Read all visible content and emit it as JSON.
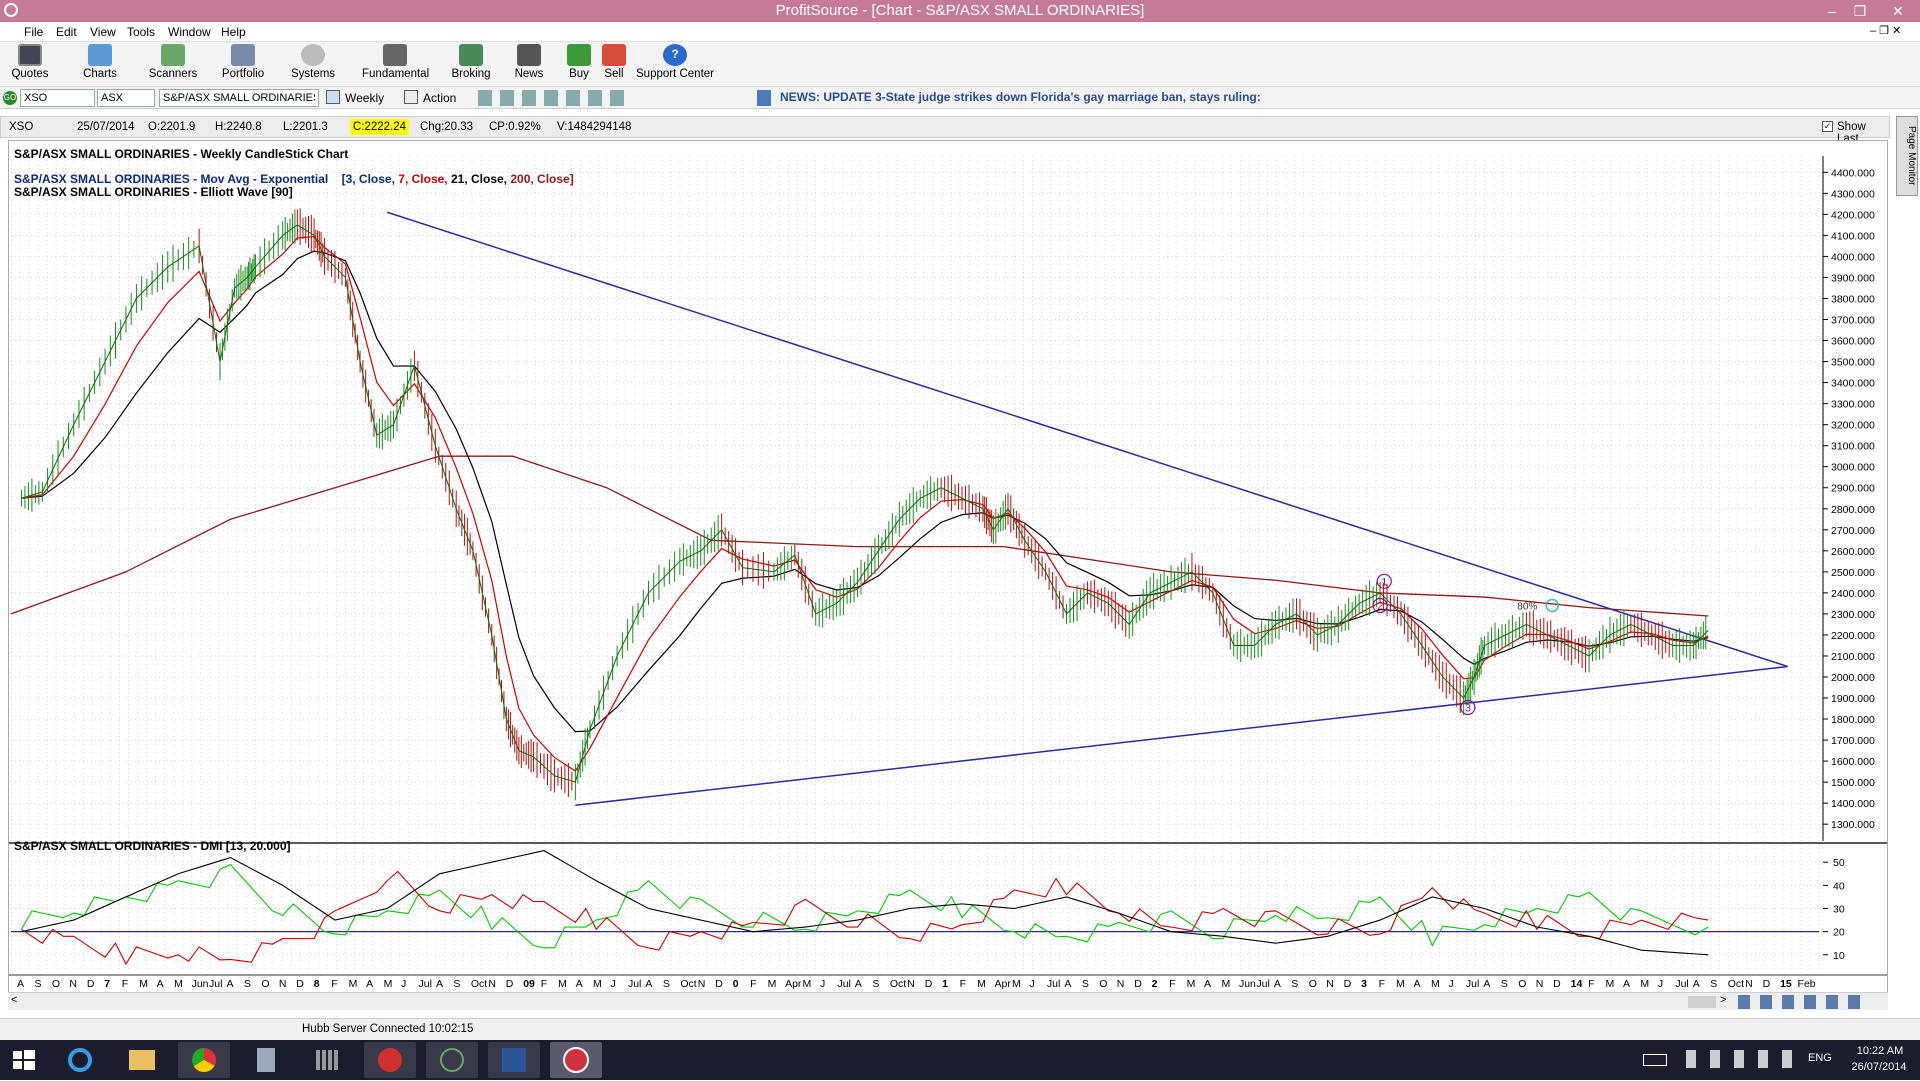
{
  "window": {
    "title": "ProfitSource - [Chart - S&P/ASX SMALL ORDINARIES]"
  },
  "menu": [
    "File",
    "Edit",
    "View",
    "Tools",
    "Window",
    "Help"
  ],
  "toolbar": {
    "buttons": [
      "Quotes",
      "Charts",
      "Scanners",
      "Portfolio",
      "Systems",
      "Fundamental",
      "Broking",
      "News",
      "Buy",
      "Sell",
      "Support Center"
    ]
  },
  "security_bar": {
    "code": "XSO",
    "exchange": "ASX",
    "name": "S&P/ASX SMALL ORDINARIES",
    "period": "Weekly",
    "action": "Action",
    "news": "NEWS: UPDATE 3-State judge strikes down Florida's gay marriage ban, stays ruling:"
  },
  "quote": {
    "code": "XSO",
    "date": "25/07/2014",
    "open": "O:2201.9",
    "high": "H:2240.8",
    "low": "L:2201.3",
    "close": "C:2222.24",
    "change": "Chg:20.33",
    "change_pct": "CP:0.92%",
    "volume": "V:1484294148",
    "show_last": "Show Last"
  },
  "side_tab": "Page Monitor",
  "status": "Hubb Server Connected 10:02:15",
  "clock": {
    "time": "10:22 AM",
    "date": "26/07/2014",
    "lang": "ENG"
  },
  "colors": {
    "title_bar": "#c57a95",
    "close_highlight": "#ffff00",
    "mov_avg_3": "#cc0000",
    "mov_avg_21": "#000000",
    "mov_avg_200": "#8b1a1a",
    "trend_lines": "#2b2b9a",
    "dmi_plus": "#00cc00",
    "dmi_minus": "#cc0000",
    "adx": "#000000",
    "wave_labels": "#7a1a6a"
  },
  "chart_data": [
    {
      "type": "line",
      "title": "S&P/ASX SMALL ORDINARIES - Weekly CandleStick Chart",
      "legend_name": "S&P/ASX SMALL ORDINARIES - Mov Avg - Exponential",
      "legend_params": [
        "[3, Close, ",
        "7, Close, ",
        "21, Close, ",
        "200, Close]"
      ],
      "legend2": "S&P/ASX SMALL ORDINARIES - Elliott Wave [90]",
      "y_ticks": [
        "4400.000",
        "4300.000",
        "4200.000",
        "4100.000",
        "4000.000",
        "3900.000",
        "3800.000",
        "3700.000",
        "3600.000",
        "3500.000",
        "3400.000",
        "3300.000",
        "3200.000",
        "3100.000",
        "3000.000",
        "2900.000",
        "2800.000",
        "2700.000",
        "2600.000",
        "2500.000",
        "2400.000",
        "2300.000",
        "2200.000",
        "2100.000",
        "2000.000",
        "1900.000",
        "1800.000",
        "1700.000",
        "1600.000",
        "1500.000",
        "1400.000",
        "1300.000"
      ],
      "ylim": [
        1220,
        4430
      ],
      "x_range": [
        2006.45,
        2015.1
      ],
      "x": [
        2006.5,
        2006.6,
        2006.75,
        2006.9,
        2007.05,
        2007.2,
        2007.35,
        2007.45,
        2007.52,
        2007.58,
        2007.62,
        2007.75,
        2007.82,
        2007.9,
        2007.95,
        2008.05,
        2008.12,
        2008.2,
        2008.28,
        2008.38,
        2008.48,
        2008.58,
        2008.66,
        2008.75,
        2008.82,
        2008.88,
        2008.95,
        2009.05,
        2009.15,
        2009.22,
        2009.35,
        2009.5,
        2009.65,
        2009.75,
        2009.85,
        2009.95,
        2010.1,
        2010.2,
        2010.3,
        2010.4,
        2010.5,
        2010.6,
        2010.7,
        2010.8,
        2010.9,
        2011.0,
        2011.1,
        2011.15,
        2011.22,
        2011.3,
        2011.4,
        2011.5,
        2011.6,
        2011.7,
        2011.8,
        2011.9,
        2012.0,
        2012.1,
        2012.2,
        2012.3,
        2012.4,
        2012.5,
        2012.6,
        2012.7,
        2012.8,
        2012.9,
        2013.0,
        2013.1,
        2013.2,
        2013.3,
        2013.4,
        2013.45,
        2013.5,
        2013.6,
        2013.7,
        2013.8,
        2013.9,
        2014.0,
        2014.1,
        2014.2,
        2014.3,
        2014.4,
        2014.5,
        2014.57
      ],
      "series": [
        {
          "name": "Close",
          "values": [
            2850,
            2880,
            3200,
            3500,
            3800,
            3950,
            4050,
            3500,
            3850,
            3900,
            3950,
            4100,
            4150,
            4100,
            4000,
            3900,
            3500,
            3150,
            3200,
            3480,
            3100,
            2800,
            2600,
            2200,
            1800,
            1650,
            1620,
            1530,
            1500,
            1750,
            2100,
            2400,
            2550,
            2600,
            2700,
            2520,
            2500,
            2580,
            2300,
            2350,
            2450,
            2600,
            2750,
            2850,
            2900,
            2850,
            2800,
            2700,
            2800,
            2650,
            2500,
            2300,
            2400,
            2350,
            2250,
            2400,
            2450,
            2500,
            2400,
            2150,
            2150,
            2250,
            2300,
            2200,
            2250,
            2350,
            2400,
            2300,
            2150,
            2000,
            1900,
            2000,
            2150,
            2200,
            2250,
            2200,
            2150,
            2100,
            2200,
            2250,
            2200,
            2150,
            2150,
            2222
          ]
        }
      ],
      "mov_avg_200": {
        "x": [
          2006.45,
          2007.0,
          2007.5,
          2008.0,
          2008.5,
          2008.85,
          2009.3,
          2009.8,
          2010.5,
          2011.2,
          2012.0,
          2012.5,
          2013.0,
          2013.5,
          2014.0,
          2014.57
        ],
        "values": [
          2300,
          2500,
          2750,
          2900,
          3050,
          3050,
          2900,
          2650,
          2620,
          2620,
          2500,
          2460,
          2400,
          2380,
          2330,
          2290
        ]
      },
      "trend_lines": [
        {
          "from": [
            2008.25,
            4210
          ],
          "to": [
            2014.95,
            2050
          ]
        },
        {
          "from": [
            2009.15,
            1390
          ],
          "to": [
            2014.95,
            2050
          ]
        }
      ],
      "annotations": [
        "1",
        "2",
        "3",
        "80%"
      ],
      "wave_points": [
        {
          "label": "2",
          "x": 2013.02,
          "y": 2455
        },
        {
          "label": "1",
          "x": 2013.0,
          "y": 2340
        },
        {
          "label": "3",
          "x": 2013.42,
          "y": 1855
        },
        {
          "label": "80%",
          "x": 2013.8,
          "y": 2340
        }
      ]
    },
    {
      "type": "line",
      "title": "S&P/ASX SMALL ORDINARIES - DMI [13, 20.000]",
      "y_ticks": [
        "50",
        "40",
        "30",
        "20",
        "10"
      ],
      "ylim": [
        3,
        57
      ],
      "reference": 20,
      "x": [
        2006.5,
        2006.75,
        2007.0,
        2007.25,
        2007.5,
        2007.75,
        2008.0,
        2008.25,
        2008.5,
        2008.75,
        2009.0,
        2009.25,
        2009.5,
        2009.75,
        2010.0,
        2010.25,
        2010.5,
        2010.75,
        2011.0,
        2011.25,
        2011.5,
        2011.75,
        2012.0,
        2012.25,
        2012.5,
        2012.75,
        2013.0,
        2013.25,
        2013.5,
        2013.75,
        2014.0,
        2014.25,
        2014.57
      ],
      "series": [
        {
          "name": "+DI",
          "values": [
            25,
            30,
            35,
            40,
            45,
            30,
            20,
            28,
            35,
            25,
            15,
            25,
            40,
            30,
            25,
            22,
            28,
            35,
            30,
            22,
            18,
            22,
            25,
            20,
            28,
            25,
            32,
            18,
            25,
            30,
            35,
            25,
            22
          ]
        },
        {
          "name": "-DI",
          "values": [
            20,
            15,
            10,
            12,
            8,
            15,
            25,
            45,
            30,
            35,
            30,
            25,
            15,
            20,
            22,
            30,
            25,
            18,
            22,
            35,
            40,
            30,
            22,
            28,
            25,
            22,
            20,
            38,
            25,
            25,
            20,
            25,
            25
          ]
        },
        {
          "name": "ADX",
          "values": [
            20,
            25,
            35,
            45,
            52,
            40,
            25,
            30,
            45,
            50,
            55,
            42,
            30,
            25,
            20,
            22,
            25,
            30,
            32,
            30,
            35,
            28,
            20,
            18,
            15,
            18,
            25,
            35,
            30,
            22,
            18,
            12,
            10
          ]
        }
      ],
      "x_ticks": [
        "A",
        "S",
        "O",
        "N",
        "D",
        "7",
        "F",
        "M",
        "A",
        "M",
        "Jun",
        "Jul",
        "A",
        "S",
        "O",
        "N",
        "D",
        "8",
        "F",
        "M",
        "A",
        "M",
        "J",
        "Jul",
        "A",
        "S",
        "Oct",
        "N",
        "D",
        "09",
        "F",
        "M",
        "A",
        "M",
        "J",
        "Jul",
        "A",
        "S",
        "Oct",
        "N",
        "D",
        "0",
        "F",
        "M",
        "Apr",
        "M",
        "J",
        "Jul",
        "A",
        "S",
        "Oct",
        "N",
        "D",
        "1",
        "F",
        "M",
        "Apr",
        "M",
        "J",
        "Jul",
        "A",
        "S",
        "O",
        "N",
        "D",
        "2",
        "F",
        "M",
        "A",
        "M",
        "Jun",
        "Jul",
        "A",
        "S",
        "O",
        "N",
        "D",
        "3",
        "F",
        "M",
        "A",
        "M",
        "J",
        "Jul",
        "A",
        "S",
        "O",
        "N",
        "D",
        "14",
        "F",
        "M",
        "A",
        "M",
        "J",
        "Jul",
        "A",
        "S",
        "Oct",
        "N",
        "D",
        "15",
        "Feb"
      ]
    }
  ]
}
